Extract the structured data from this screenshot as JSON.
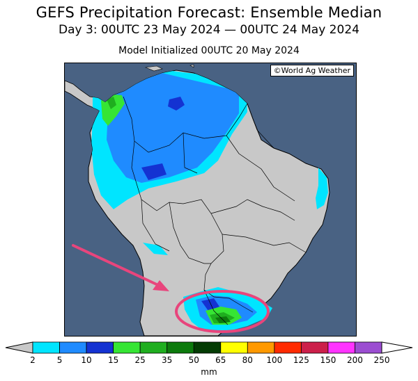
{
  "title": "GEFS Precipitation Forecast: Ensemble Median",
  "subtitle": "Day 3: 00UTC 23 May 2024 — 00UTC 24 May 2024",
  "init_line": "Model Initialized 00UTC 20 May 2024",
  "credit": "©World Ag Weather",
  "colors": {
    "ocean": "#496283",
    "land": "#c8c8c8",
    "borders": "#000000",
    "annotation": "#e8457c"
  },
  "legend": {
    "units": "mm",
    "ticks": [
      "2",
      "5",
      "10",
      "15",
      "25",
      "35",
      "50",
      "65",
      "80",
      "100",
      "125",
      "150",
      "200",
      "250"
    ],
    "bins": [
      {
        "range": "2-5",
        "color": "#00e5ff"
      },
      {
        "range": "5-10",
        "color": "#1f8bff"
      },
      {
        "range": "10-15",
        "color": "#1432d2"
      },
      {
        "range": "15-25",
        "color": "#36e534"
      },
      {
        "range": "25-35",
        "color": "#1fae1f"
      },
      {
        "range": "35-50",
        "color": "#0c7a0c"
      },
      {
        "range": "50-65",
        "color": "#033b03"
      },
      {
        "range": "65-80",
        "color": "#ffff00"
      },
      {
        "range": "80-100",
        "color": "#ff9900"
      },
      {
        "range": "100-125",
        "color": "#ff2a00"
      },
      {
        "range": "125-150",
        "color": "#cc1f4a"
      },
      {
        "range": "150-200",
        "color": "#ff33ff"
      },
      {
        "range": "200-250",
        "color": "#9b4dd1"
      }
    ],
    "under_color": "#c8c8c8",
    "over_color": "#ffffff"
  },
  "annotations": {
    "highlight": "ellipse around heavy rain over southern Brazil / Uruguay",
    "arrow": "pink arrow pointing toward highlighted area"
  }
}
